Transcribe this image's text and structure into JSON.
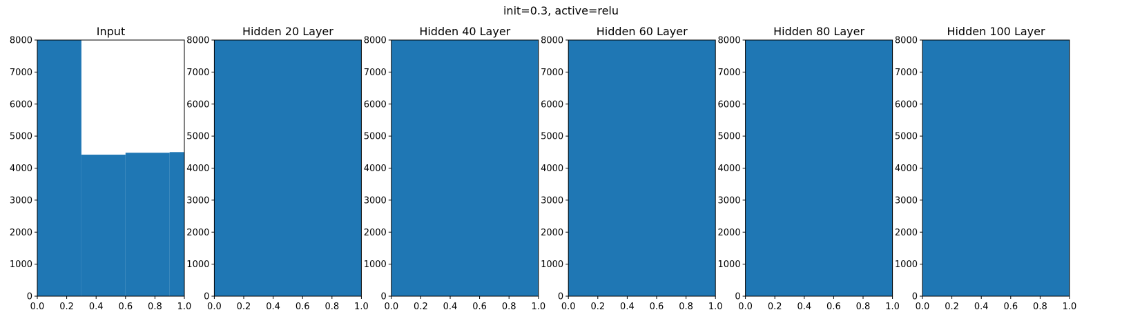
{
  "suptitle": "init=0.3, active=relu",
  "colors": {
    "bar": "#1f77b4",
    "axis": "#000000",
    "text": "#000000"
  },
  "chart_data": [
    {
      "type": "bar",
      "title": "Input",
      "xlim": [
        0,
        1
      ],
      "ylim": [
        0,
        8000
      ],
      "xticks": [
        "0.0",
        "0.2",
        "0.4",
        "0.6",
        "0.8",
        "1.0"
      ],
      "yticks": [
        "0",
        "1000",
        "2000",
        "3000",
        "4000",
        "5000",
        "6000",
        "7000",
        "8000"
      ],
      "bins": [
        {
          "x0": 0.0,
          "x1": 0.3,
          "value": 8000
        },
        {
          "x0": 0.3,
          "x1": 0.6,
          "value": 4420
        },
        {
          "x0": 0.6,
          "x1": 0.9,
          "value": 4480
        },
        {
          "x0": 0.9,
          "x1": 1.0,
          "value": 4500
        }
      ]
    },
    {
      "type": "bar",
      "title": "Hidden 20 Layer",
      "xlim": [
        0,
        1
      ],
      "ylim": [
        0,
        8000
      ],
      "xticks": [
        "0.0",
        "0.2",
        "0.4",
        "0.6",
        "0.8",
        "1.0"
      ],
      "yticks": [
        "0",
        "1000",
        "2000",
        "3000",
        "4000",
        "5000",
        "6000",
        "7000",
        "8000"
      ],
      "bins": [
        {
          "x0": 0.0,
          "x1": 1.0,
          "value": 8000
        }
      ]
    },
    {
      "type": "bar",
      "title": "Hidden 40 Layer",
      "xlim": [
        0,
        1
      ],
      "ylim": [
        0,
        8000
      ],
      "xticks": [
        "0.0",
        "0.2",
        "0.4",
        "0.6",
        "0.8",
        "1.0"
      ],
      "yticks": [
        "0",
        "1000",
        "2000",
        "3000",
        "4000",
        "5000",
        "6000",
        "7000",
        "8000"
      ],
      "bins": [
        {
          "x0": 0.0,
          "x1": 1.0,
          "value": 8000
        }
      ]
    },
    {
      "type": "bar",
      "title": "Hidden 60 Layer",
      "xlim": [
        0,
        1
      ],
      "ylim": [
        0,
        8000
      ],
      "xticks": [
        "0.0",
        "0.2",
        "0.4",
        "0.6",
        "0.8",
        "1.0"
      ],
      "yticks": [
        "0",
        "1000",
        "2000",
        "3000",
        "4000",
        "5000",
        "6000",
        "7000",
        "8000"
      ],
      "bins": [
        {
          "x0": 0.0,
          "x1": 1.0,
          "value": 8000
        }
      ]
    },
    {
      "type": "bar",
      "title": "Hidden 80 Layer",
      "xlim": [
        0,
        1
      ],
      "ylim": [
        0,
        8000
      ],
      "xticks": [
        "0.0",
        "0.2",
        "0.4",
        "0.6",
        "0.8",
        "1.0"
      ],
      "yticks": [
        "0",
        "1000",
        "2000",
        "3000",
        "4000",
        "5000",
        "6000",
        "7000",
        "8000"
      ],
      "bins": [
        {
          "x0": 0.0,
          "x1": 1.0,
          "value": 8000
        }
      ]
    },
    {
      "type": "bar",
      "title": "Hidden 100 Layer",
      "xlim": [
        0,
        1
      ],
      "ylim": [
        0,
        8000
      ],
      "xticks": [
        "0.0",
        "0.2",
        "0.4",
        "0.6",
        "0.8",
        "1.0"
      ],
      "yticks": [
        "0",
        "1000",
        "2000",
        "3000",
        "4000",
        "5000",
        "6000",
        "7000",
        "8000"
      ],
      "bins": [
        {
          "x0": 0.0,
          "x1": 1.0,
          "value": 8000
        }
      ]
    }
  ]
}
